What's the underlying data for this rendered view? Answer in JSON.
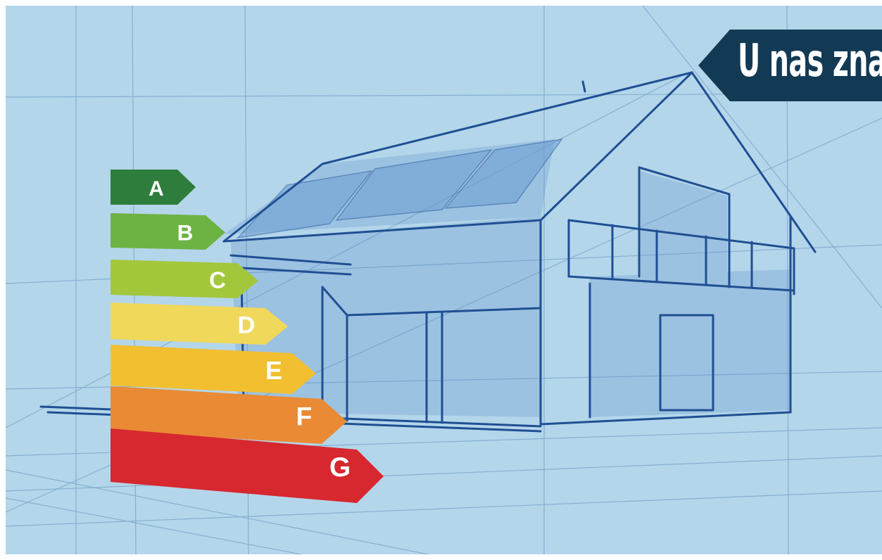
{
  "banner": {
    "text": "U nas znajd"
  },
  "energy_classes": [
    {
      "letter": "A",
      "color": "#2e7d3c"
    },
    {
      "letter": "B",
      "color": "#6db344"
    },
    {
      "letter": "C",
      "color": "#a2c73b"
    },
    {
      "letter": "D",
      "color": "#f0d85a"
    },
    {
      "letter": "E",
      "color": "#f1bf30"
    },
    {
      "letter": "F",
      "color": "#ea8a34"
    },
    {
      "letter": "G",
      "color": "#d7282f"
    }
  ],
  "colors": {
    "background": "#b4d6ea",
    "ink": "#1f4f93",
    "banner": "#133a55"
  }
}
